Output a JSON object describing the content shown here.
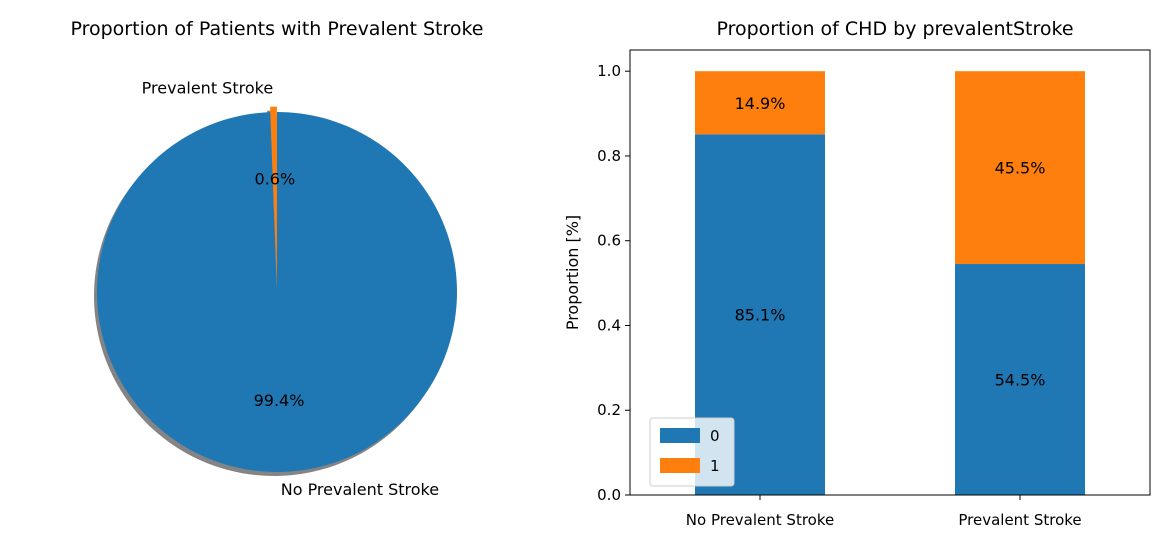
{
  "chart_data": [
    {
      "type": "pie",
      "title": "Proportion of Patients with Prevalent Stroke",
      "slices": [
        {
          "label": "No Prevalent Stroke",
          "value": 99.4,
          "pct_label": "99.4%",
          "color": "#1f77b4"
        },
        {
          "label": "Prevalent Stroke",
          "value": 0.6,
          "pct_label": "0.6%",
          "color": "#ff7f0e",
          "exploded": true
        }
      ],
      "shadow": true
    },
    {
      "type": "bar",
      "stacked": true,
      "title": "Proportion of CHD by prevalentStroke",
      "xlabel": "",
      "ylabel": "Proportion [%]",
      "categories": [
        "No Prevalent Stroke",
        "Prevalent Stroke"
      ],
      "series": [
        {
          "name": "0",
          "values": [
            0.851,
            0.545
          ],
          "labels": [
            "85.1%",
            "54.5%"
          ],
          "color": "#1f77b4"
        },
        {
          "name": "1",
          "values": [
            0.149,
            0.455
          ],
          "labels": [
            "14.9%",
            "45.5%"
          ],
          "color": "#ff7f0e"
        }
      ],
      "ylim": [
        0,
        1.05
      ],
      "yticks": [
        0.0,
        0.2,
        0.4,
        0.6,
        0.8,
        1.0
      ],
      "ytick_labels": [
        "0.0",
        "0.2",
        "0.4",
        "0.6",
        "0.8",
        "1.0"
      ],
      "legend": "lower-left",
      "grid": false
    }
  ]
}
